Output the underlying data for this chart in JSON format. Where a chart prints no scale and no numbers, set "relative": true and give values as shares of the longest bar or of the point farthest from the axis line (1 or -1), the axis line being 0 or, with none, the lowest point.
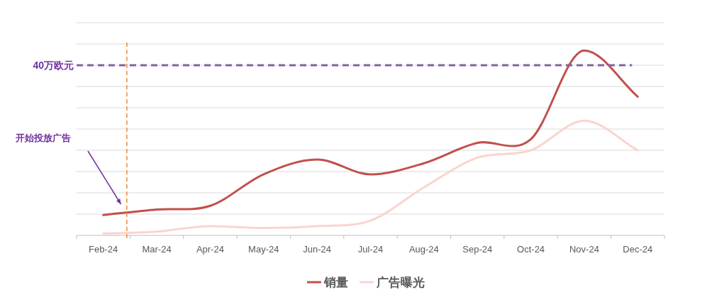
{
  "chart_data": {
    "type": "line",
    "relative": true,
    "grid": "y",
    "legend": "bottom",
    "line_style": "solid",
    "marker": "none",
    "categories": [
      "Feb-24",
      "Mar-24",
      "Apr-24",
      "May-24",
      "Jun-24",
      "Jul-24",
      "Aug-24",
      "Sep-24",
      "Oct-24",
      "Nov-24",
      "Dec-24"
    ],
    "series": [
      {
        "name": "销量",
        "color": "#c0504d",
        "values": [
          0.11,
          0.14,
          0.16,
          0.33,
          0.41,
          0.33,
          0.39,
          0.5,
          0.52,
          1,
          0.75
        ]
      },
      {
        "name": "广告曝光",
        "color": "#fad4cf",
        "values": [
          0.01,
          0.02,
          0.05,
          0.04,
          0.05,
          0.08,
          0.26,
          0.42,
          0.46,
          0.62,
          0.46
        ]
      }
    ],
    "ref_lines": [
      {
        "axis": "y",
        "value": 0.92,
        "label": "40万欧元",
        "color": "#8064a2",
        "line_style": "dashed"
      },
      {
        "axis": "x",
        "value": "Feb-24",
        "label": null,
        "color": "#f08a36",
        "line_style": "dashed"
      }
    ],
    "annotations": [
      "开始投放广告"
    ]
  }
}
